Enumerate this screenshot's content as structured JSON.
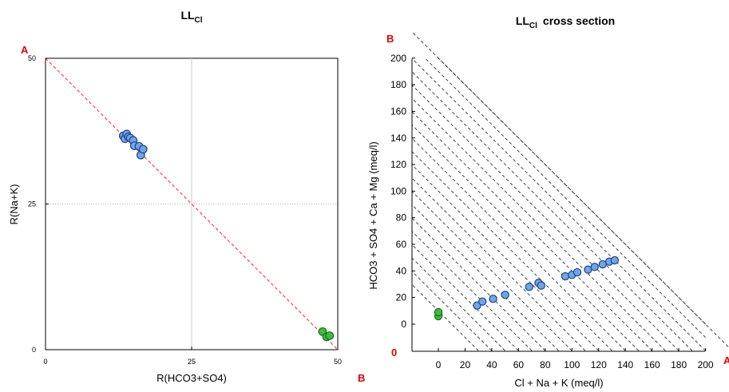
{
  "chart_data": [
    {
      "type": "scatter",
      "title": "LL",
      "title_subscript": "Cl",
      "xlabel": "R(HCO3+SO4)",
      "ylabel": "R(Na+K)",
      "xlim": [
        0,
        50
      ],
      "ylim": [
        0,
        50
      ],
      "x_ticks": [
        "0",
        "25",
        "50"
      ],
      "y_ticks": [
        "0",
        "25",
        "50"
      ],
      "grid": "dotted at 25",
      "reference_line": {
        "from": [
          0,
          50
        ],
        "to": [
          50,
          0
        ],
        "style": "dashed",
        "color": "#ff0000"
      },
      "corner_labels": [
        "A",
        "B"
      ],
      "series": [
        {
          "color": "#6fa8dc",
          "points": [
            [
              13.3,
              36.7
            ],
            [
              13.6,
              36.2
            ],
            [
              13.9,
              37.0
            ],
            [
              14.2,
              36.5
            ],
            [
              14.5,
              36.3
            ],
            [
              15.0,
              35.9
            ],
            [
              15.2,
              35.0
            ],
            [
              16.0,
              34.9
            ],
            [
              16.3,
              33.4
            ],
            [
              16.7,
              34.4
            ]
          ]
        },
        {
          "color": "#3dbb3d",
          "points": [
            [
              47.4,
              3.1
            ],
            [
              48.1,
              2.2
            ],
            [
              48.6,
              2.4
            ]
          ]
        }
      ]
    },
    {
      "type": "scatter",
      "title": "LL",
      "title_subscript": "Cl",
      "title_suffix": "cross section",
      "xlabel": "Cl + Na + K (meq/l)",
      "ylabel": "HCO3 + SO4 + Ca + Mg (meq/l)",
      "xlim": [
        -20,
        200
      ],
      "ylim": [
        -20,
        200
      ],
      "x_ticks": [
        "0",
        "20",
        "40",
        "60",
        "80",
        "100",
        "120",
        "140",
        "160",
        "180",
        "200"
      ],
      "y_ticks": [
        "0",
        "20",
        "40",
        "60",
        "80",
        "100",
        "120",
        "140",
        "160",
        "180",
        "200"
      ],
      "corner_labels": [
        "B",
        "0",
        "A"
      ],
      "grid": "dashed diagonal lines x + y = constant",
      "series": [
        {
          "color": "#6fa8dc",
          "points": [
            [
              29,
              14
            ],
            [
              33,
              17
            ],
            [
              41,
              19
            ],
            [
              50,
              22
            ],
            [
              68,
              28
            ],
            [
              75,
              31
            ],
            [
              77,
              29
            ],
            [
              95,
              36
            ],
            [
              100,
              37
            ],
            [
              104,
              39
            ],
            [
              112,
              41
            ],
            [
              117,
              43
            ],
            [
              123,
              45
            ],
            [
              128,
              47
            ],
            [
              132,
              48
            ]
          ]
        },
        {
          "color": "#3dbb3d",
          "points": [
            [
              0,
              6
            ],
            [
              0,
              9
            ]
          ]
        }
      ]
    }
  ]
}
